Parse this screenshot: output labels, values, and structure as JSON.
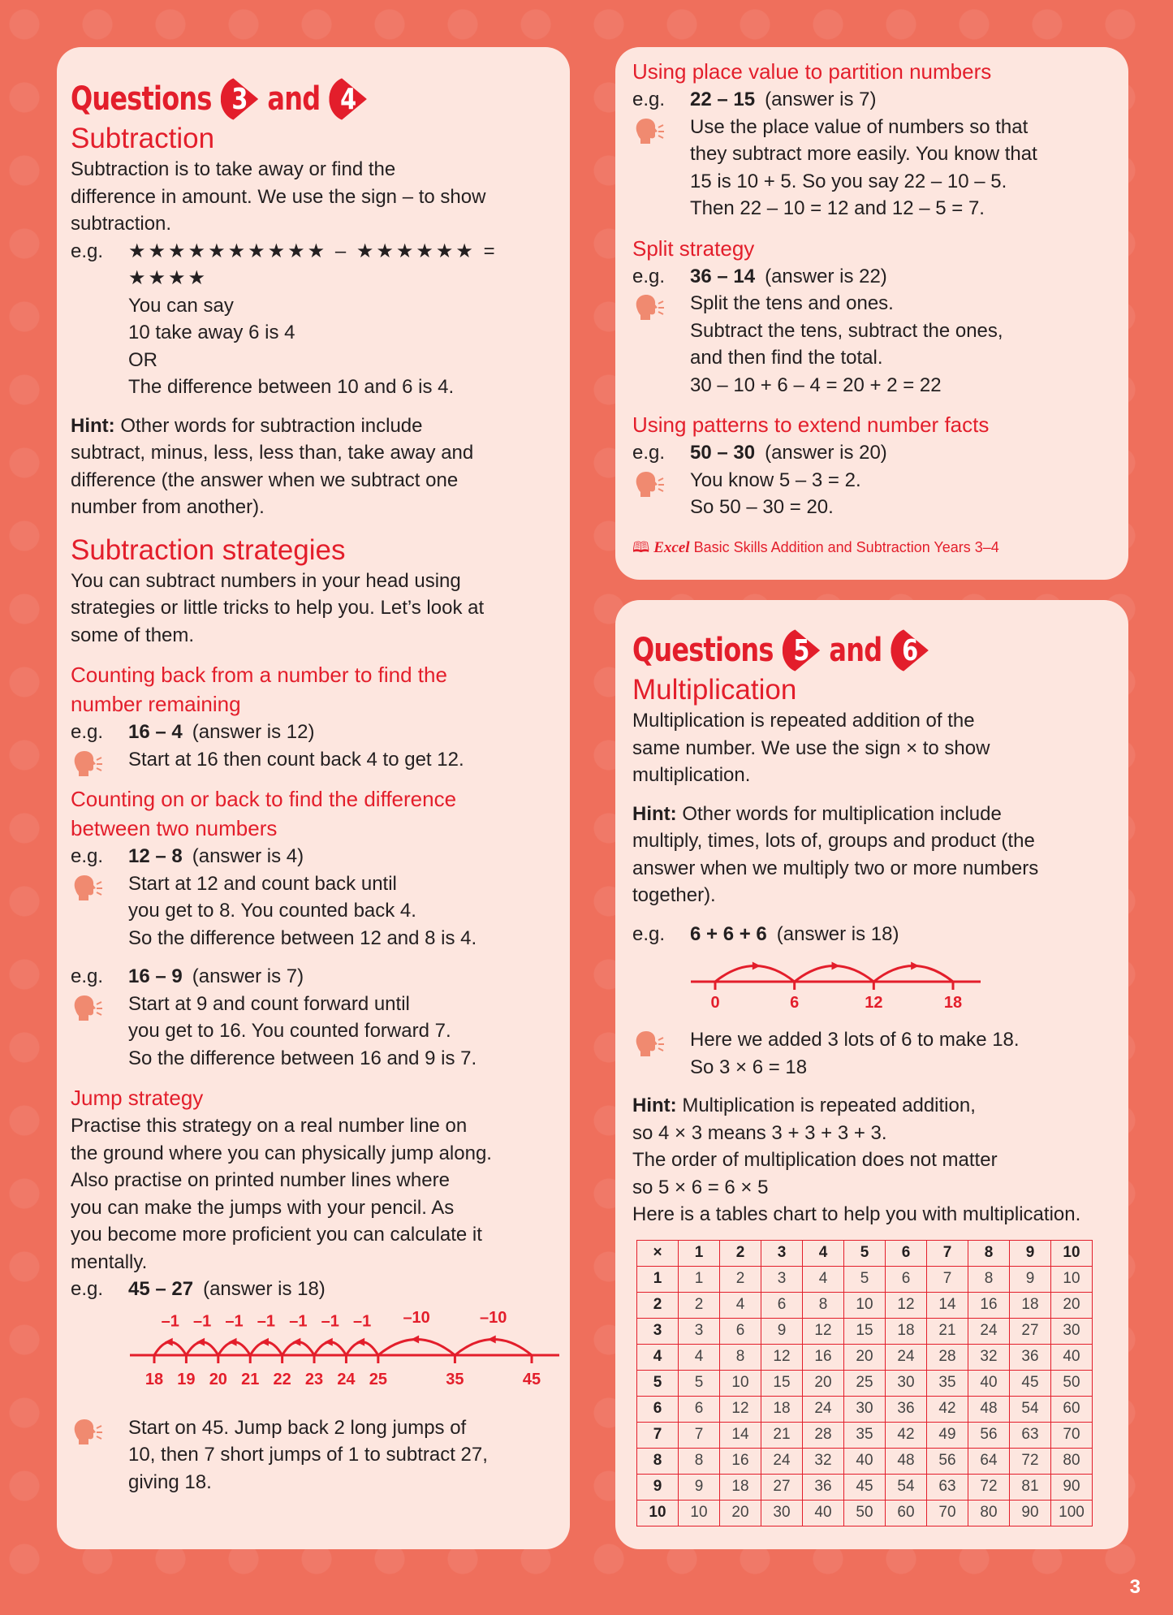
{
  "colors": {
    "accent": "#e31e2b",
    "background": "#ef6f5c",
    "panel": "#fde6df",
    "icon": "#f08a70"
  },
  "page_number": "3",
  "panels": {
    "left": [
      {
        "type": "qtitle",
        "word": "Questions",
        "a": "3",
        "and": "and",
        "b": "4"
      },
      {
        "type": "h1",
        "text": "Subtraction"
      },
      {
        "type": "p",
        "lines": [
          "Subtraction is to take away or find the",
          "difference in amount. We use the sign – to show",
          "subtraction."
        ]
      },
      {
        "type": "stars",
        "label": "e.g.",
        "text": "★★★★★★★★★★ – ★★★★★★ = ★★★★"
      },
      {
        "type": "indent",
        "lines": [
          "You can say",
          "10 take away 6 is 4",
          "OR",
          "The difference between 10 and 6 is 4."
        ]
      },
      {
        "type": "hint",
        "label": "Hint:",
        "lines": [
          " Other words for subtraction include",
          "subtract, minus, less, less than, take away and",
          "difference (the answer when we subtract one",
          "number from another)."
        ]
      },
      {
        "type": "h1big",
        "text": "Subtraction strategies"
      },
      {
        "type": "p",
        "lines": [
          "You can subtract numbers in your head using",
          "strategies or little tricks to help you. Let’s look at",
          "some of them."
        ]
      },
      {
        "type": "h2",
        "lines": [
          "Counting back from a number to find the",
          "number remaining"
        ]
      },
      {
        "type": "eg",
        "label": "e.g.",
        "ex": "16 – 4",
        "rest": "(answer is 12)"
      },
      {
        "type": "tip",
        "lines": [
          "Start at 16 then count back 4 to get 12."
        ]
      },
      {
        "type": "h2",
        "lines": [
          "Counting on or back to find the difference",
          "between two numbers"
        ]
      },
      {
        "type": "eg",
        "label": "e.g.",
        "ex": "12 – 8",
        "rest": "(answer is 4)"
      },
      {
        "type": "tip",
        "lines": [
          "Start at 12 and count back until",
          "you get to 8. You counted back 4.",
          "So the difference between 12 and 8 is 4."
        ]
      },
      {
        "type": "eg",
        "after": true,
        "label": "e.g.",
        "ex": "16 – 9",
        "rest": "(answer is 7)"
      },
      {
        "type": "tip",
        "lines": [
          "Start at 9 and count forward until",
          "you get to 16. You counted forward 7.",
          "So the difference between 16 and 9 is 7."
        ]
      },
      {
        "type": "h2",
        "lines": [
          "Jump strategy"
        ]
      },
      {
        "type": "p",
        "lines": [
          "Practise this strategy on a real number line on",
          "the ground where you can physically jump along.",
          "Also practise on printed number lines where",
          "you can make the jumps with your pencil. As",
          "you become more proficient you can calculate it",
          "mentally."
        ]
      },
      {
        "type": "eg",
        "label": "e.g.",
        "ex": "45 – 27",
        "rest": "(answer is 18)"
      },
      {
        "type": "numberline",
        "id": "nl1",
        "ticks": [
          18,
          19,
          20,
          21,
          22,
          23,
          24,
          25,
          35,
          45
        ],
        "jumps": [
          {
            "from": 45,
            "to": 35,
            "label": "–10"
          },
          {
            "from": 35,
            "to": 25,
            "label": "–10"
          },
          {
            "from": 25,
            "to": 24,
            "label": "–1"
          },
          {
            "from": 24,
            "to": 23,
            "label": "–1"
          },
          {
            "from": 23,
            "to": 22,
            "label": "–1"
          },
          {
            "from": 22,
            "to": 21,
            "label": "–1"
          },
          {
            "from": 21,
            "to": 20,
            "label": "–1"
          },
          {
            "from": 20,
            "to": 19,
            "label": "–1"
          },
          {
            "from": 19,
            "to": 18,
            "label": "–1"
          }
        ]
      },
      {
        "type": "tip",
        "lines": [
          "Start on 45. Jump back 2 long jumps of",
          "10, then 7 short jumps of 1 to subtract 27,",
          "giving 18."
        ]
      }
    ],
    "right_top": [
      {
        "type": "h2first",
        "lines": [
          "Using place value to partition numbers"
        ]
      },
      {
        "type": "eg",
        "label": "e.g.",
        "ex": "22 – 15",
        "rest": "(answer is 7)"
      },
      {
        "type": "tip",
        "lines": [
          "Use the place value of numbers so that",
          "they subtract more easily. You know that",
          "15 is 10 + 5. So you say 22 – 10 – 5.",
          "Then 22 – 10 = 12 and 12 – 5 = 7."
        ]
      },
      {
        "type": "h2",
        "lines": [
          "Split strategy"
        ]
      },
      {
        "type": "eg",
        "label": "e.g.",
        "ex": "36 – 14",
        "rest": "(answer is 22)"
      },
      {
        "type": "tip",
        "lines": [
          "Split the tens and ones.",
          "Subtract the tens, subtract the ones,",
          "and then find the total.",
          "30 – 10 + 6 – 4 = 20 + 2 = 22"
        ]
      },
      {
        "type": "h2",
        "lines": [
          "Using patterns to extend number facts"
        ]
      },
      {
        "type": "eg",
        "label": "e.g.",
        "ex": "50 – 30",
        "rest": "(answer is 20)"
      },
      {
        "type": "tip",
        "lines": [
          "You know 5 – 3 = 2.",
          "So 50 – 30 = 20."
        ]
      },
      {
        "type": "footer",
        "brand": "Excel",
        "text": " Basic Skills Addition and Subtraction Years 3–4"
      }
    ],
    "right_bottom": [
      {
        "type": "qtitle",
        "word": "Questions",
        "a": "5",
        "and": "and",
        "b": "6"
      },
      {
        "type": "h1",
        "text": "Multiplication"
      },
      {
        "type": "p",
        "lines": [
          "Multiplication is repeated addition of the",
          "same number. We use the sign × to show",
          "multiplication."
        ]
      },
      {
        "type": "hint",
        "label": "Hint:",
        "lines": [
          " Other words for multiplication include",
          "multiply, times, lots of, groups and product (the",
          "answer when we multiply two or more numbers",
          "together)."
        ]
      },
      {
        "type": "eg",
        "after": true,
        "label": "e.g.",
        "ex": "6 + 6 + 6",
        "rest": "(answer is 18)"
      },
      {
        "type": "numberline",
        "id": "nl2",
        "ticks": [
          0,
          6,
          12,
          18
        ],
        "jumps": [
          {
            "from": 0,
            "to": 6,
            "label": ""
          },
          {
            "from": 6,
            "to": 12,
            "label": ""
          },
          {
            "from": 12,
            "to": 18,
            "label": ""
          }
        ]
      },
      {
        "type": "tip",
        "lines": [
          "Here we added 3 lots of 6 to make 18.",
          "So 3 × 6 = 18"
        ]
      },
      {
        "type": "hint",
        "label": "Hint:",
        "lines": [
          " Multiplication is repeated addition,",
          "so 4 × 3 means 3 + 3 + 3 + 3."
        ]
      },
      {
        "type": "p",
        "lines": [
          "The order of multiplication does not matter",
          "so 5 × 6 = 6 × 5",
          "Here is a tables chart to help you with multiplication."
        ]
      },
      {
        "type": "table",
        "header": [
          "×",
          "1",
          "2",
          "3",
          "4",
          "5",
          "6",
          "7",
          "8",
          "9",
          "10"
        ],
        "rows": [
          [
            "1",
            "1",
            "2",
            "3",
            "4",
            "5",
            "6",
            "7",
            "8",
            "9",
            "10"
          ],
          [
            "2",
            "2",
            "4",
            "6",
            "8",
            "10",
            "12",
            "14",
            "16",
            "18",
            "20"
          ],
          [
            "3",
            "3",
            "6",
            "9",
            "12",
            "15",
            "18",
            "21",
            "24",
            "27",
            "30"
          ],
          [
            "4",
            "4",
            "8",
            "12",
            "16",
            "20",
            "24",
            "28",
            "32",
            "36",
            "40"
          ],
          [
            "5",
            "5",
            "10",
            "15",
            "20",
            "25",
            "30",
            "35",
            "40",
            "45",
            "50"
          ],
          [
            "6",
            "6",
            "12",
            "18",
            "24",
            "30",
            "36",
            "42",
            "48",
            "54",
            "60"
          ],
          [
            "7",
            "7",
            "14",
            "21",
            "28",
            "35",
            "42",
            "49",
            "56",
            "63",
            "70"
          ],
          [
            "8",
            "8",
            "16",
            "24",
            "32",
            "40",
            "48",
            "56",
            "64",
            "72",
            "80"
          ],
          [
            "9",
            "9",
            "18",
            "27",
            "36",
            "45",
            "54",
            "63",
            "72",
            "81",
            "90"
          ],
          [
            "10",
            "10",
            "20",
            "30",
            "40",
            "50",
            "60",
            "70",
            "80",
            "90",
            "100"
          ]
        ]
      }
    ]
  }
}
